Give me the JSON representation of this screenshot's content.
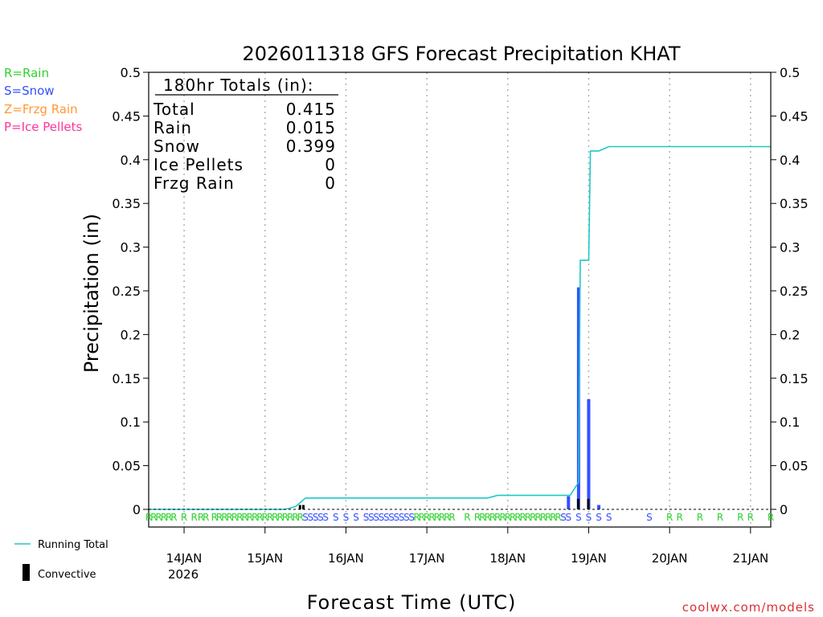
{
  "colors": {
    "rain": "#2fd22f",
    "snow": "#3350ff",
    "frzg_rain": "#ff9933",
    "ice_pellets": "#ff3399",
    "running_total": "#1fc8c8",
    "convective": "#000000",
    "grid": "#b0b0b0",
    "watermark": "#d93030"
  },
  "legend_ptypes": {
    "rain": "R=Rain",
    "snow": "S=Snow",
    "frzg_rain": "Z=Frzg Rain",
    "ice_pellets": "P=Ice Pellets"
  },
  "legend_bottom": {
    "running_total": "Running Total",
    "convective": "Convective"
  },
  "totals": {
    "header": "180hr Totals (in):",
    "rows": [
      {
        "label": "Total",
        "value": "0.415"
      },
      {
        "label": "Rain",
        "value": "0.015"
      },
      {
        "label": "Snow",
        "value": "0.399"
      },
      {
        "label": "Ice Pellets",
        "value": "0"
      },
      {
        "label": "Frzg Rain",
        "value": "0"
      }
    ]
  },
  "watermark": "coolwx.com/models",
  "chart_data": {
    "type": "bar",
    "title": "2026011318 GFS Forecast Precipitation KHAT",
    "xlabel": "Forecast Time (UTC)",
    "ylabel": "Precipitation (in)",
    "x_unit": "forecast hour (0 = 13JAN 18Z)",
    "xlim": [
      -4.5,
      180
    ],
    "ylim": [
      0,
      0.5
    ],
    "yticks": [
      0,
      0.05,
      0.1,
      0.15,
      0.2,
      0.25,
      0.3,
      0.35,
      0.4,
      0.45,
      0.5
    ],
    "ytick_labels": [
      "0",
      "0.05",
      "0.1",
      "0.15",
      "0.2",
      "0.25",
      "0.3",
      "0.35",
      "0.4",
      "0.45",
      "0.5"
    ],
    "xticks": [
      {
        "hour": 6,
        "label": "14JAN",
        "sublabel": "2026"
      },
      {
        "hour": 30,
        "label": "15JAN"
      },
      {
        "hour": 54,
        "label": "16JAN"
      },
      {
        "hour": 78,
        "label": "17JAN"
      },
      {
        "hour": 102,
        "label": "18JAN"
      },
      {
        "hour": 126,
        "label": "19JAN"
      },
      {
        "hour": 150,
        "label": "20JAN"
      },
      {
        "hour": 174,
        "label": "21JAN"
      }
    ],
    "series": [
      {
        "name": "Running Total",
        "kind": "line",
        "x": [
          -4.5,
          36,
          39,
          42,
          96,
          99,
          120,
          120.5,
          123,
          123.5,
          126,
          126.5,
          129,
          132,
          180
        ],
        "y": [
          0,
          0,
          0.003,
          0.013,
          0.013,
          0.016,
          0.016,
          0.016,
          0.031,
          0.285,
          0.285,
          0.41,
          0.41,
          0.415,
          0.415
        ]
      },
      {
        "name": "Precipitation",
        "kind": "bar",
        "bars": [
          {
            "hour": 123,
            "value": 0.254,
            "type": "S"
          },
          {
            "hour": 126,
            "value": 0.126,
            "type": "S"
          },
          {
            "hour": 120,
            "value": 0.015,
            "type": "S"
          },
          {
            "hour": 129,
            "value": 0.005,
            "type": "S"
          }
        ]
      },
      {
        "name": "Convective",
        "kind": "bar",
        "bars": [
          {
            "hour": 40.5,
            "value": 0.005
          },
          {
            "hour": 41.5,
            "value": 0.005
          },
          {
            "hour": 123,
            "value": 0.012
          },
          {
            "hour": 126,
            "value": 0.012
          }
        ]
      }
    ],
    "ptype_labels": [
      {
        "hour": -4.5,
        "type": "R"
      },
      {
        "hour": -3,
        "type": "R"
      },
      {
        "hour": -1.5,
        "type": "R"
      },
      {
        "hour": 0,
        "type": "R"
      },
      {
        "hour": 1.5,
        "type": "R"
      },
      {
        "hour": 3,
        "type": "R"
      },
      {
        "hour": 6,
        "type": "R"
      },
      {
        "hour": 9,
        "type": "R"
      },
      {
        "hour": 11,
        "type": "R"
      },
      {
        "hour": 12.5,
        "type": "R"
      },
      {
        "hour": 15,
        "type": "R"
      },
      {
        "hour": 16.5,
        "type": "R"
      },
      {
        "hour": 18,
        "type": "R"
      },
      {
        "hour": 19.5,
        "type": "R"
      },
      {
        "hour": 21,
        "type": "R"
      },
      {
        "hour": 22.5,
        "type": "R"
      },
      {
        "hour": 24,
        "type": "R"
      },
      {
        "hour": 25.5,
        "type": "R"
      },
      {
        "hour": 27,
        "type": "R"
      },
      {
        "hour": 28.5,
        "type": "R"
      },
      {
        "hour": 30,
        "type": "R"
      },
      {
        "hour": 31.5,
        "type": "R"
      },
      {
        "hour": 33,
        "type": "R"
      },
      {
        "hour": 34.5,
        "type": "R"
      },
      {
        "hour": 36,
        "type": "R"
      },
      {
        "hour": 37.5,
        "type": "R"
      },
      {
        "hour": 39,
        "type": "R"
      },
      {
        "hour": 40.5,
        "type": "R"
      },
      {
        "hour": 42,
        "type": "S"
      },
      {
        "hour": 43.5,
        "type": "S"
      },
      {
        "hour": 45,
        "type": "S"
      },
      {
        "hour": 46.5,
        "type": "S"
      },
      {
        "hour": 48,
        "type": "S"
      },
      {
        "hour": 51,
        "type": "S"
      },
      {
        "hour": 54,
        "type": "S"
      },
      {
        "hour": 57,
        "type": "S"
      },
      {
        "hour": 60,
        "type": "S"
      },
      {
        "hour": 61.5,
        "type": "S"
      },
      {
        "hour": 63,
        "type": "S"
      },
      {
        "hour": 64.5,
        "type": "S"
      },
      {
        "hour": 66,
        "type": "S"
      },
      {
        "hour": 67.5,
        "type": "S"
      },
      {
        "hour": 69,
        "type": "S"
      },
      {
        "hour": 70.5,
        "type": "S"
      },
      {
        "hour": 72,
        "type": "S"
      },
      {
        "hour": 73.5,
        "type": "S"
      },
      {
        "hour": 75,
        "type": "R"
      },
      {
        "hour": 76.5,
        "type": "R"
      },
      {
        "hour": 78,
        "type": "R"
      },
      {
        "hour": 79.5,
        "type": "R"
      },
      {
        "hour": 81,
        "type": "R"
      },
      {
        "hour": 82.5,
        "type": "R"
      },
      {
        "hour": 84,
        "type": "R"
      },
      {
        "hour": 85.5,
        "type": "R"
      },
      {
        "hour": 90,
        "type": "R"
      },
      {
        "hour": 93,
        "type": "R"
      },
      {
        "hour": 94.5,
        "type": "R"
      },
      {
        "hour": 96,
        "type": "R"
      },
      {
        "hour": 97.5,
        "type": "R"
      },
      {
        "hour": 99,
        "type": "R"
      },
      {
        "hour": 100.5,
        "type": "R"
      },
      {
        "hour": 102,
        "type": "R"
      },
      {
        "hour": 103.5,
        "type": "R"
      },
      {
        "hour": 105,
        "type": "R"
      },
      {
        "hour": 106.5,
        "type": "R"
      },
      {
        "hour": 108,
        "type": "R"
      },
      {
        "hour": 109.5,
        "type": "R"
      },
      {
        "hour": 111,
        "type": "R"
      },
      {
        "hour": 112.5,
        "type": "R"
      },
      {
        "hour": 114,
        "type": "R"
      },
      {
        "hour": 115.5,
        "type": "R"
      },
      {
        "hour": 117,
        "type": "R"
      },
      {
        "hour": 118.5,
        "type": "S"
      },
      {
        "hour": 120,
        "type": "S"
      },
      {
        "hour": 123,
        "type": "S"
      },
      {
        "hour": 126,
        "type": "S"
      },
      {
        "hour": 129,
        "type": "S"
      },
      {
        "hour": 132,
        "type": "S"
      },
      {
        "hour": 144,
        "type": "S"
      },
      {
        "hour": 150,
        "type": "R"
      },
      {
        "hour": 153,
        "type": "R"
      },
      {
        "hour": 159,
        "type": "R"
      },
      {
        "hour": 165,
        "type": "R"
      },
      {
        "hour": 171,
        "type": "R"
      },
      {
        "hour": 174,
        "type": "R"
      },
      {
        "hour": 180,
        "type": "R"
      }
    ]
  }
}
